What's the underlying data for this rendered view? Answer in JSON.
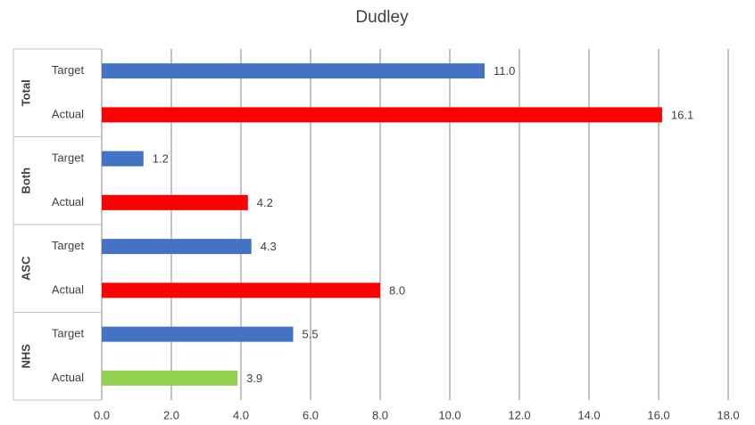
{
  "chart_data": {
    "type": "bar",
    "orientation": "horizontal",
    "title": "Dudley",
    "groups": [
      "Total",
      "Both",
      "ASC",
      "NHS"
    ],
    "categories": [
      "Target",
      "Actual",
      "Target",
      "Actual",
      "Target",
      "Actual",
      "Target",
      "Actual"
    ],
    "values": [
      11.0,
      16.1,
      1.2,
      4.2,
      4.3,
      8.0,
      5.5,
      3.9
    ],
    "value_labels": [
      "11.0",
      "16.1",
      "1.2",
      "4.2",
      "4.3",
      "8.0",
      "5.5",
      "3.9"
    ],
    "colors": [
      "#4472c4",
      "#ff0000",
      "#4472c4",
      "#ff0000",
      "#4472c4",
      "#ff0000",
      "#4472c4",
      "#92d050"
    ],
    "xlim": [
      0,
      18
    ],
    "xticks": [
      {
        "value": 0,
        "label": "0.0"
      },
      {
        "value": 2,
        "label": "2.0"
      },
      {
        "value": 4,
        "label": "4.0"
      },
      {
        "value": 6,
        "label": "6.0"
      },
      {
        "value": 8,
        "label": "8.0"
      },
      {
        "value": 10,
        "label": "10.0"
      },
      {
        "value": 12,
        "label": "12.0"
      },
      {
        "value": 14,
        "label": "14.0"
      },
      {
        "value": 16,
        "label": "16.0"
      },
      {
        "value": 18,
        "label": "18.0"
      }
    ],
    "grid": true
  }
}
